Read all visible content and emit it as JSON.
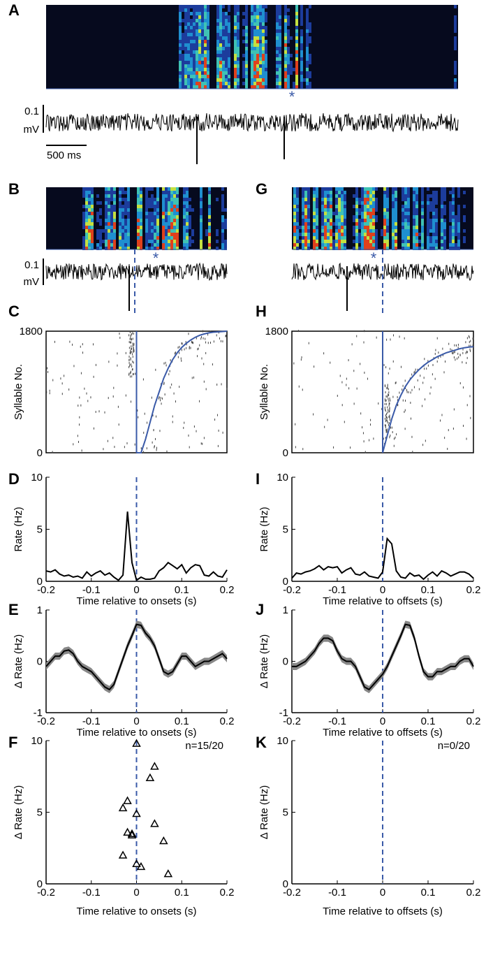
{
  "panel_labels": [
    "A",
    "B",
    "G",
    "C",
    "H",
    "D",
    "I",
    "E",
    "J",
    "F",
    "K"
  ],
  "traces": {
    "scale_voltage": "0.1",
    "scale_unit": "mV",
    "scale_time": "500 ms",
    "marker": "*"
  },
  "chart_data": [
    {
      "type": "raster",
      "ylabel": "Syllable No.",
      "xlim": [
        -0.2,
        0.2
      ],
      "ylim": [
        0,
        1800
      ],
      "yticks": [
        0,
        1800
      ],
      "vline": 0,
      "series": [
        {
          "color": "#3a5aa8",
          "x": [
            0,
            0.01,
            0.02,
            0.03,
            0.04,
            0.05,
            0.06,
            0.07,
            0.08,
            0.09,
            0.1,
            0.11,
            0.12,
            0.13,
            0.14,
            0.15,
            0.16,
            0.17,
            0.18,
            0.19,
            0.2
          ],
          "values": [
            0,
            0,
            200,
            450,
            700,
            900,
            1100,
            1250,
            1380,
            1480,
            1560,
            1620,
            1670,
            1710,
            1740,
            1760,
            1775,
            1785,
            1790,
            1795,
            1800
          ]
        }
      ]
    },
    {
      "type": "line",
      "ylabel": "Rate (Hz)",
      "xlabel": "Time relative to onsets (s)",
      "xlim": [
        -0.2,
        0.2
      ],
      "xticks": [
        -0.2,
        -0.1,
        0,
        0.1,
        0.2
      ],
      "ylim": [
        0,
        10
      ],
      "yticks": [
        0,
        5,
        10
      ],
      "vline": 0,
      "series": [
        {
          "color": "#000000",
          "x": [
            -0.2,
            -0.19,
            -0.18,
            -0.17,
            -0.16,
            -0.15,
            -0.14,
            -0.13,
            -0.12,
            -0.11,
            -0.1,
            -0.09,
            -0.08,
            -0.07,
            -0.06,
            -0.05,
            -0.04,
            -0.03,
            -0.02,
            -0.01,
            0,
            0.01,
            0.02,
            0.03,
            0.04,
            0.05,
            0.06,
            0.07,
            0.08,
            0.09,
            0.1,
            0.11,
            0.12,
            0.13,
            0.14,
            0.15,
            0.16,
            0.17,
            0.18,
            0.19,
            0.2
          ],
          "values": [
            1,
            0.9,
            1.1,
            0.7,
            0.5,
            0.6,
            0.4,
            0.5,
            0.3,
            0.9,
            0.5,
            0.8,
            1,
            0.6,
            0.8,
            0.4,
            0.1,
            0.6,
            6.7,
            1.8,
            0.1,
            0.4,
            0.2,
            0.2,
            0.3,
            1,
            1.3,
            1.8,
            1.5,
            1.2,
            1.6,
            0.8,
            1.3,
            1.6,
            1.5,
            0.6,
            0.5,
            0.9,
            0.5,
            0.4,
            1.1
          ]
        }
      ]
    },
    {
      "type": "band",
      "ylabel": "Δ Rate (Hz)",
      "xlabel": "Time relative to onsets (s)",
      "xlim": [
        -0.2,
        0.2
      ],
      "xticks": [
        -0.2,
        -0.1,
        0,
        0.1,
        0.2
      ],
      "ylim": [
        -1,
        1
      ],
      "yticks": [
        -1,
        0,
        1
      ],
      "vline": 0,
      "sem": 0.07,
      "band_color": "#888888",
      "series": [
        {
          "color": "#000000",
          "x": [
            -0.2,
            -0.19,
            -0.18,
            -0.17,
            -0.16,
            -0.15,
            -0.14,
            -0.13,
            -0.12,
            -0.11,
            -0.1,
            -0.09,
            -0.08,
            -0.07,
            -0.06,
            -0.05,
            -0.04,
            -0.03,
            -0.02,
            -0.01,
            0,
            0.01,
            0.02,
            0.03,
            0.04,
            0.05,
            0.06,
            0.07,
            0.08,
            0.09,
            0.1,
            0.11,
            0.12,
            0.13,
            0.14,
            0.15,
            0.16,
            0.17,
            0.18,
            0.19,
            0.2
          ],
          "values": [
            -0.1,
            0,
            0.1,
            0.1,
            0.2,
            0.22,
            0.15,
            0,
            -0.1,
            -0.15,
            -0.2,
            -0.3,
            -0.4,
            -0.5,
            -0.55,
            -0.45,
            -0.2,
            0.05,
            0.3,
            0.5,
            0.72,
            0.7,
            0.55,
            0.45,
            0.3,
            0.05,
            -0.2,
            -0.25,
            -0.2,
            -0.05,
            0.1,
            0.1,
            0,
            -0.1,
            -0.05,
            0,
            0,
            0.05,
            0.1,
            0.15,
            0.05
          ]
        }
      ]
    },
    {
      "type": "scatter",
      "ylabel": "Δ Rate (Hz)",
      "xlabel": "Time relative to onsets (s)",
      "annotation": "n=15/20",
      "xlim": [
        -0.2,
        0.2
      ],
      "xticks": [
        -0.2,
        -0.1,
        0,
        0.1,
        0.2
      ],
      "ylim": [
        0,
        10
      ],
      "yticks": [
        0,
        5,
        10
      ],
      "vline": 0,
      "series": [
        {
          "color": "#000000",
          "x": [
            0,
            0.04,
            0.03,
            -0.02,
            -0.03,
            0,
            0.04,
            -0.02,
            -0.01,
            0.06,
            -0.03,
            0,
            0.01,
            0.07,
            -0.01
          ],
          "values": [
            9.8,
            8.2,
            7.4,
            5.8,
            5.3,
            4.9,
            4.2,
            3.6,
            3.4,
            3,
            2,
            1.4,
            1.2,
            0.7,
            3.5
          ]
        }
      ]
    },
    {
      "type": "raster",
      "ylabel": "Syllable No.",
      "xlim": [
        -0.2,
        0.2
      ],
      "ylim": [
        0,
        1800
      ],
      "yticks": [
        0,
        1800
      ],
      "vline": 0,
      "series": [
        {
          "color": "#3a5aa8",
          "x": [
            0,
            0.01,
            0.02,
            0.03,
            0.04,
            0.05,
            0.06,
            0.07,
            0.08,
            0.09,
            0.1,
            0.11,
            0.12,
            0.13,
            0.14,
            0.15,
            0.16,
            0.17,
            0.18,
            0.19,
            0.2
          ],
          "values": [
            0,
            250,
            500,
            700,
            850,
            980,
            1080,
            1160,
            1230,
            1290,
            1340,
            1380,
            1420,
            1450,
            1480,
            1500,
            1520,
            1540,
            1555,
            1565,
            1570
          ]
        }
      ]
    },
    {
      "type": "line",
      "ylabel": "Rate (Hz)",
      "xlabel": "Time relative to offsets (s)",
      "xlim": [
        -0.2,
        0.2
      ],
      "xticks": [
        -0.2,
        -0.1,
        0,
        0.1,
        0.2
      ],
      "ylim": [
        0,
        10
      ],
      "yticks": [
        0,
        5,
        10
      ],
      "vline": 0,
      "series": [
        {
          "color": "#000000",
          "x": [
            -0.2,
            -0.19,
            -0.18,
            -0.17,
            -0.16,
            -0.15,
            -0.14,
            -0.13,
            -0.12,
            -0.11,
            -0.1,
            -0.09,
            -0.08,
            -0.07,
            -0.06,
            -0.05,
            -0.04,
            -0.03,
            -0.02,
            -0.01,
            0,
            0.01,
            0.02,
            0.03,
            0.04,
            0.05,
            0.06,
            0.07,
            0.08,
            0.09,
            0.1,
            0.11,
            0.12,
            0.13,
            0.14,
            0.15,
            0.16,
            0.17,
            0.18,
            0.19,
            0.2
          ],
          "values": [
            0.3,
            0.8,
            0.7,
            0.9,
            1,
            1.2,
            1.5,
            1.1,
            1.4,
            1.3,
            1.4,
            0.8,
            1.1,
            1.3,
            0.7,
            0.6,
            0.9,
            0.5,
            0.4,
            0.3,
            0.9,
            4.1,
            3.6,
            1,
            0.4,
            0.3,
            0.8,
            0.5,
            0.6,
            0.2,
            0.6,
            0.9,
            0.5,
            1,
            0.8,
            0.5,
            0.7,
            0.9,
            0.9,
            0.7,
            0.3
          ]
        }
      ]
    },
    {
      "type": "band",
      "ylabel": "Δ Rate (Hz)",
      "xlabel": "Time relative to offsets (s)",
      "xlim": [
        -0.2,
        0.2
      ],
      "xticks": [
        -0.2,
        -0.1,
        0,
        0.1,
        0.2
      ],
      "ylim": [
        -1,
        1
      ],
      "yticks": [
        -1,
        0,
        1
      ],
      "vline": 0,
      "sem": 0.07,
      "band_color": "#888888",
      "series": [
        {
          "color": "#000000",
          "x": [
            -0.2,
            -0.19,
            -0.18,
            -0.17,
            -0.16,
            -0.15,
            -0.14,
            -0.13,
            -0.12,
            -0.11,
            -0.1,
            -0.09,
            -0.08,
            -0.07,
            -0.06,
            -0.05,
            -0.04,
            -0.03,
            -0.02,
            -0.01,
            0,
            0.01,
            0.02,
            0.03,
            0.04,
            0.05,
            0.06,
            0.07,
            0.08,
            0.09,
            0.1,
            0.11,
            0.12,
            0.13,
            0.14,
            0.15,
            0.16,
            0.17,
            0.18,
            0.19,
            0.2
          ],
          "values": [
            -0.1,
            -0.1,
            -0.05,
            0,
            0.1,
            0.2,
            0.35,
            0.45,
            0.45,
            0.4,
            0.2,
            0.05,
            0,
            0,
            -0.1,
            -0.3,
            -0.5,
            -0.55,
            -0.45,
            -0.35,
            -0.25,
            -0.1,
            0.1,
            0.3,
            0.5,
            0.72,
            0.7,
            0.45,
            0.1,
            -0.2,
            -0.3,
            -0.3,
            -0.2,
            -0.2,
            -0.15,
            -0.1,
            -0.1,
            0,
            0.05,
            0.05,
            -0.1
          ]
        }
      ]
    },
    {
      "type": "scatter",
      "ylabel": "Δ Rate (Hz)",
      "xlabel": "Time relative to offsets (s)",
      "annotation": "n=0/20",
      "xlim": [
        -0.2,
        0.2
      ],
      "xticks": [
        -0.2,
        -0.1,
        0,
        0.1,
        0.2
      ],
      "ylim": [
        0,
        10
      ],
      "yticks": [
        0,
        5,
        10
      ],
      "vline": 0,
      "series": [
        {
          "color": "#000000",
          "x": [],
          "values": []
        }
      ]
    }
  ]
}
